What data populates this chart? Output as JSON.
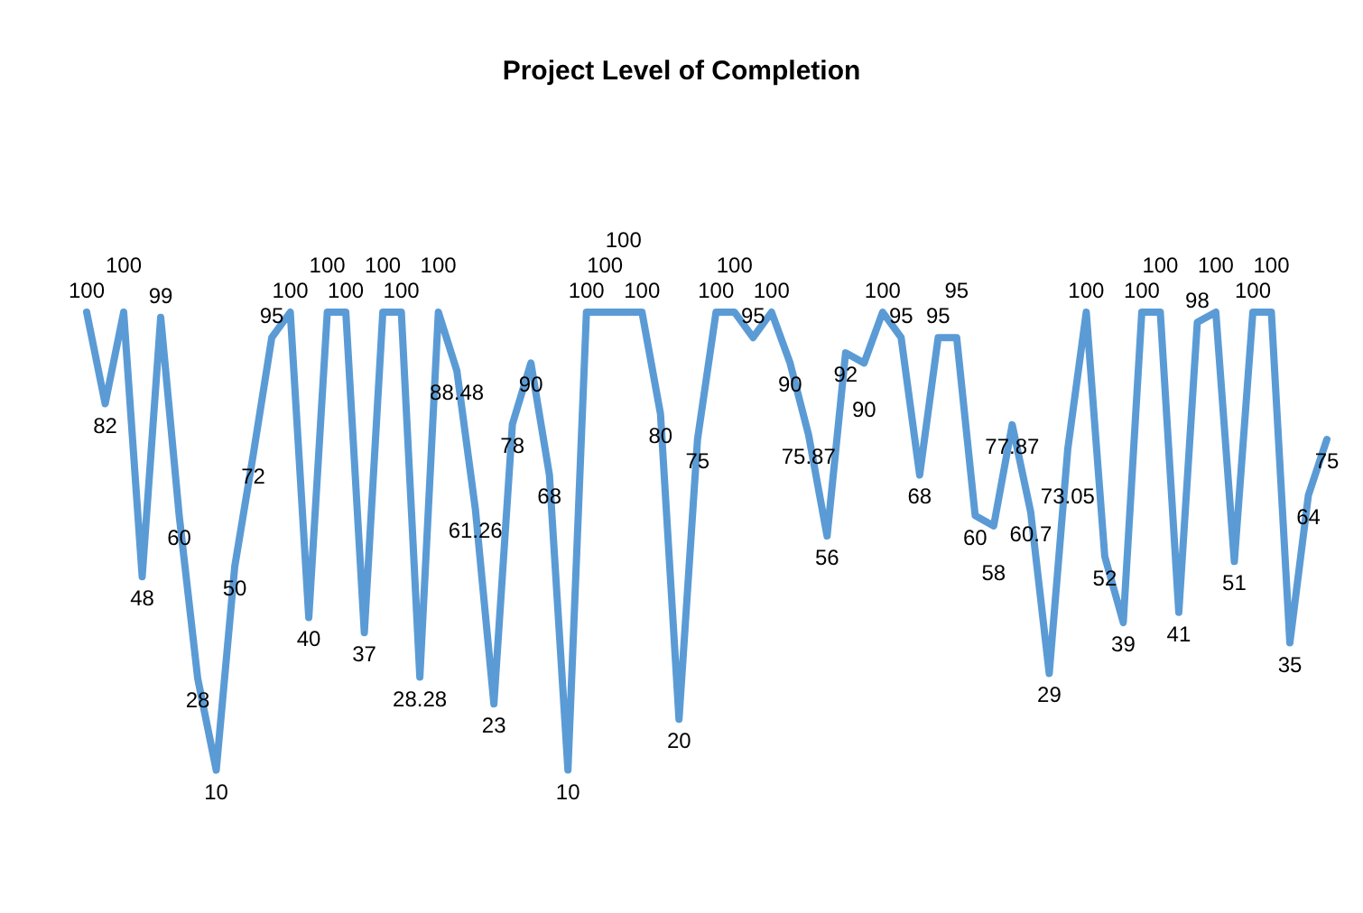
{
  "chart_data": {
    "type": "line",
    "title": "Project Level of Completion",
    "categories": [
      null,
      null,
      null,
      null,
      null,
      null,
      null,
      null,
      null,
      null,
      null,
      null,
      null,
      null,
      null,
      null,
      null,
      null,
      null,
      null,
      null,
      null,
      null,
      null,
      null,
      null,
      null,
      null,
      null,
      null,
      null,
      null,
      null,
      null,
      null,
      null,
      null,
      null,
      null,
      null,
      null,
      null,
      null,
      null,
      null,
      null,
      null,
      null,
      null,
      null,
      null,
      null,
      null,
      null,
      null,
      null,
      null,
      null,
      null,
      null,
      null,
      null,
      null,
      null,
      null,
      null,
      null,
      null
    ],
    "series": [
      {
        "color": "#5b9bd5",
        "values": [
          100,
          82,
          100,
          48,
          99,
          60,
          28,
          10,
          50,
          72,
          95,
          100,
          40,
          100,
          100,
          37,
          100,
          100,
          28.28,
          100,
          88.48,
          61.26,
          23,
          78,
          90,
          68,
          10,
          100,
          100,
          100,
          100,
          80,
          20,
          75,
          100,
          100,
          95,
          100,
          90,
          75.87,
          56,
          92,
          90,
          100,
          95,
          68,
          95,
          95,
          60,
          58,
          77.87,
          60.7,
          29,
          73.05,
          100,
          52,
          39,
          100,
          100,
          41,
          98,
          100,
          51,
          100,
          100,
          35,
          64,
          75
        ]
      }
    ],
    "data_labels": true,
    "tick_labels": false
  }
}
